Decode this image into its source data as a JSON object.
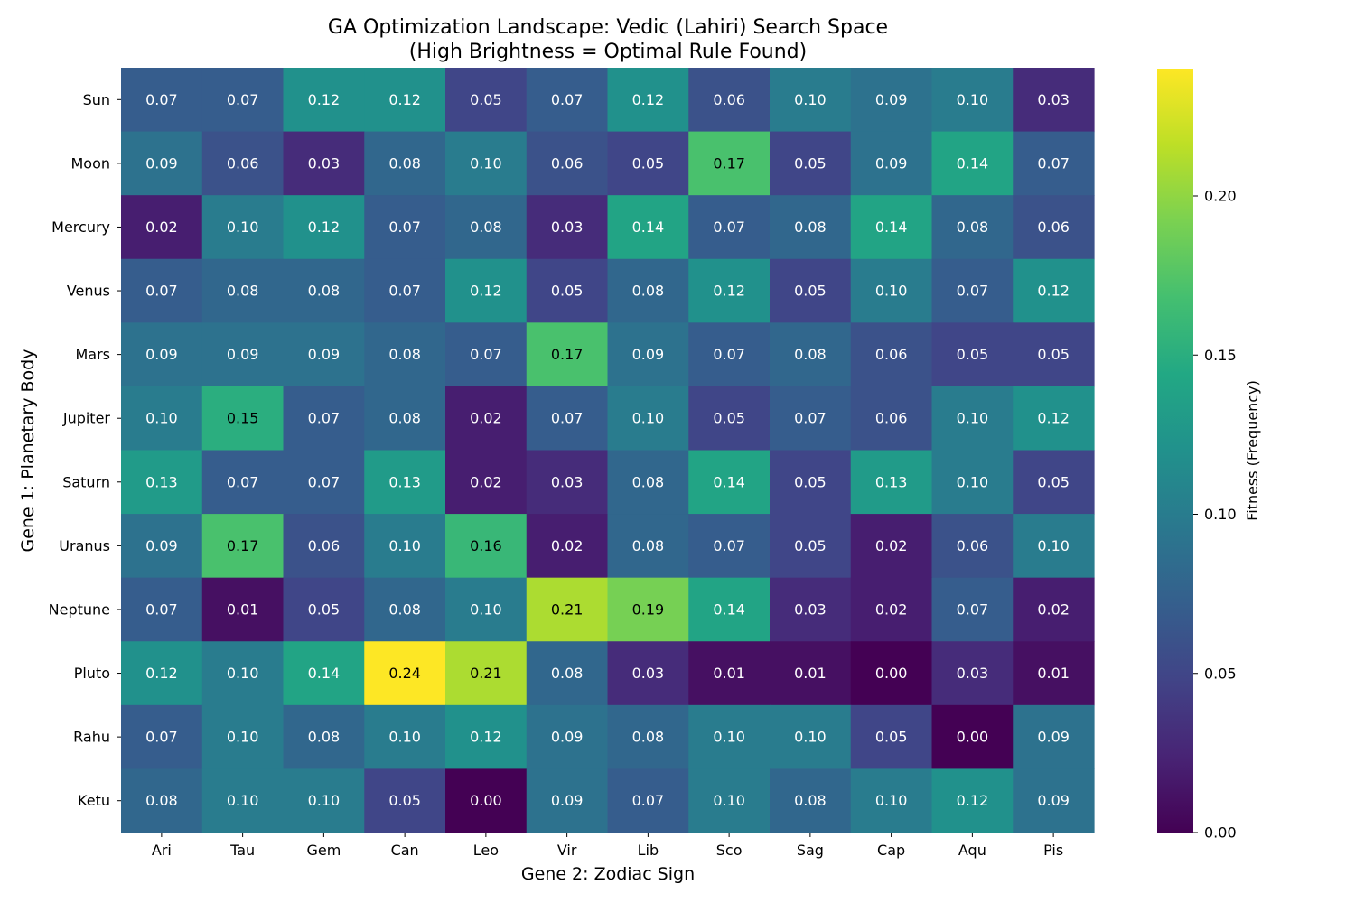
{
  "chart_data": {
    "type": "heatmap",
    "title": "GA Optimization Landscape: Vedic (Lahiri) Search Space",
    "subtitle": "(High Brightness = Optimal Rule Found)",
    "xlabel": "Gene 2: Zodiac Sign",
    "ylabel": "Gene 1: Planetary Body",
    "colorbar_label": "Fitness (Frequency)",
    "colormap": "viridis",
    "vmin": 0.0,
    "vmax": 0.24,
    "colorbar_ticks": [
      "0.00",
      "0.05",
      "0.10",
      "0.15",
      "0.20"
    ],
    "x_categories": [
      "Ari",
      "Tau",
      "Gem",
      "Can",
      "Leo",
      "Vir",
      "Lib",
      "Sco",
      "Sag",
      "Cap",
      "Aqu",
      "Pis"
    ],
    "y_categories": [
      "Sun",
      "Moon",
      "Mercury",
      "Venus",
      "Mars",
      "Jupiter",
      "Saturn",
      "Uranus",
      "Neptune",
      "Pluto",
      "Rahu",
      "Ketu"
    ],
    "values": [
      [
        0.07,
        0.07,
        0.12,
        0.12,
        0.05,
        0.07,
        0.12,
        0.06,
        0.1,
        0.09,
        0.1,
        0.03
      ],
      [
        0.09,
        0.06,
        0.03,
        0.08,
        0.1,
        0.06,
        0.05,
        0.17,
        0.05,
        0.09,
        0.14,
        0.07
      ],
      [
        0.02,
        0.1,
        0.12,
        0.07,
        0.08,
        0.03,
        0.14,
        0.07,
        0.08,
        0.14,
        0.08,
        0.06
      ],
      [
        0.07,
        0.08,
        0.08,
        0.07,
        0.12,
        0.05,
        0.08,
        0.12,
        0.05,
        0.1,
        0.07,
        0.12
      ],
      [
        0.09,
        0.09,
        0.09,
        0.08,
        0.07,
        0.17,
        0.09,
        0.07,
        0.08,
        0.06,
        0.05,
        0.05
      ],
      [
        0.1,
        0.15,
        0.07,
        0.08,
        0.02,
        0.07,
        0.1,
        0.05,
        0.07,
        0.06,
        0.1,
        0.12
      ],
      [
        0.13,
        0.07,
        0.07,
        0.13,
        0.02,
        0.03,
        0.08,
        0.14,
        0.05,
        0.13,
        0.1,
        0.05
      ],
      [
        0.09,
        0.17,
        0.06,
        0.1,
        0.16,
        0.02,
        0.08,
        0.07,
        0.05,
        0.02,
        0.06,
        0.1
      ],
      [
        0.07,
        0.01,
        0.05,
        0.08,
        0.1,
        0.21,
        0.19,
        0.14,
        0.03,
        0.02,
        0.07,
        0.02
      ],
      [
        0.12,
        0.1,
        0.14,
        0.24,
        0.21,
        0.08,
        0.03,
        0.01,
        0.01,
        0.0,
        0.03,
        0.01
      ],
      [
        0.07,
        0.1,
        0.08,
        0.1,
        0.12,
        0.09,
        0.08,
        0.1,
        0.1,
        0.05,
        0.0,
        0.09
      ],
      [
        0.08,
        0.1,
        0.1,
        0.05,
        0.0,
        0.09,
        0.07,
        0.1,
        0.08,
        0.1,
        0.12,
        0.09
      ]
    ]
  }
}
